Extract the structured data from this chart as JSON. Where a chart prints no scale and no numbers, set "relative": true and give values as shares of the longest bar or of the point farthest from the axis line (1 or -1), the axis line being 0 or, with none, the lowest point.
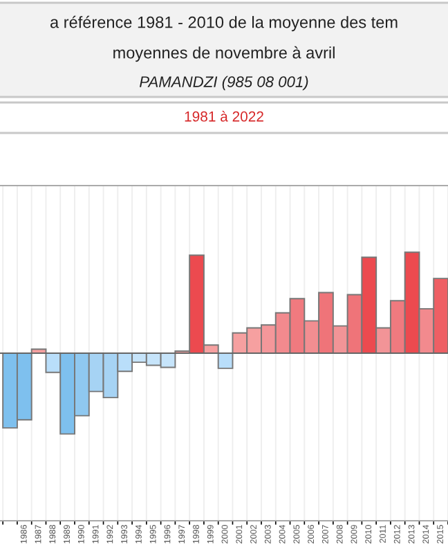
{
  "chart_data": {
    "type": "bar",
    "title": "a référence 1981 - 2010 de la moyenne des tem\nmoyennes de novembre à avril",
    "subtitle": "PAMANDZI (985 08 001)",
    "annotations": [
      "1981 à 2022"
    ],
    "categories": [
      null,
      "1986",
      "1987",
      "1988",
      "1989",
      "1990",
      "1991",
      "1992",
      "1993",
      "1994",
      "1995",
      "1996",
      "1997",
      "1998",
      "1999",
      "2000",
      "2001",
      "2002",
      "2003",
      "2004",
      "2005",
      "2006",
      "2007",
      "2008",
      "2009",
      "2010",
      "2011",
      "2012",
      "2013",
      "2014",
      "2015"
    ],
    "values": [
      -0.74,
      -0.66,
      0.04,
      -0.19,
      -0.8,
      -0.62,
      -0.38,
      -0.44,
      -0.18,
      -0.09,
      -0.12,
      -0.14,
      0.02,
      0.97,
      0.08,
      -0.15,
      0.2,
      0.25,
      0.28,
      0.4,
      0.54,
      0.32,
      0.6,
      0.27,
      0.58,
      0.95,
      0.25,
      0.52,
      1.0,
      0.44,
      0.74
    ],
    "colors": [
      "#7ec0ee",
      "#7ec0ee",
      "#f6a0a0",
      "#b9defa",
      "#7ec0ee",
      "#8fc8f0",
      "#a6d3f4",
      "#a6d3f4",
      "#b9defa",
      "#c6e4fa",
      "#c6e4fa",
      "#c6e4fa",
      "#f6a0a0",
      "#ec4a4f",
      "#f6a0a0",
      "#b9defa",
      "#f6a0a0",
      "#f6a0a0",
      "#f4979a",
      "#f28a8e",
      "#f07a7f",
      "#f28e91",
      "#ef7479",
      "#f29497",
      "#ef7479",
      "#ec4a4f",
      "#f29497",
      "#f07a7f",
      "#ec4a4f",
      "#f28a8e",
      "#ee5f64"
    ],
    "relative": true,
    "grid": "x",
    "tick_labels": "x"
  }
}
